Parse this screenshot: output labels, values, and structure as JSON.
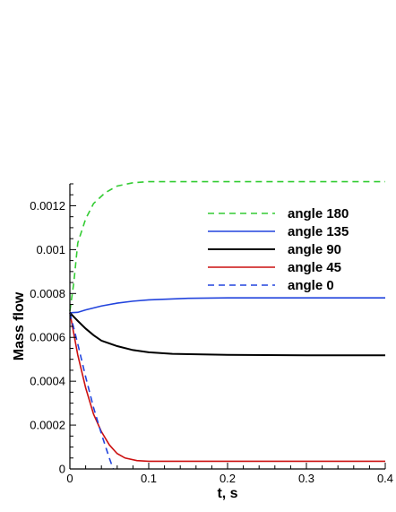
{
  "chart_data": {
    "type": "line",
    "xlabel": "t, s",
    "ylabel": "Mass flow",
    "xlim": [
      0,
      0.4
    ],
    "ylim": [
      0,
      0.0013
    ],
    "x_ticks": [
      0,
      0.1,
      0.2,
      0.3,
      0.4
    ],
    "x_tick_labels": [
      "0",
      "0.1",
      "0.2",
      "0.3",
      "0.4"
    ],
    "y_ticks": [
      0,
      0.0002,
      0.0004,
      0.0006,
      0.0008,
      0.001,
      0.0012
    ],
    "y_tick_labels": [
      "0",
      "0.0002",
      "0.0004",
      "0.0006",
      "0.0008",
      "0.001",
      "0.0012"
    ],
    "grid": false,
    "legend_position": "top-right",
    "series": [
      {
        "name": "angle 180",
        "color": "#33cc33",
        "dash": "dashed",
        "points": [
          [
            0,
            0.00072
          ],
          [
            0.005,
            0.00085
          ],
          [
            0.01,
            0.00103
          ],
          [
            0.02,
            0.00114
          ],
          [
            0.03,
            0.00121
          ],
          [
            0.045,
            0.00126
          ],
          [
            0.06,
            0.00129
          ],
          [
            0.08,
            0.001305
          ],
          [
            0.1,
            0.00131
          ],
          [
            0.2,
            0.00131
          ],
          [
            0.3,
            0.00131
          ],
          [
            0.4,
            0.00131
          ]
        ]
      },
      {
        "name": "angle 135",
        "color": "#2244dd",
        "dash": "solid",
        "points": [
          [
            0,
            0.000712
          ],
          [
            0.01,
            0.000714
          ],
          [
            0.02,
            0.000725
          ],
          [
            0.04,
            0.000743
          ],
          [
            0.06,
            0.000756
          ],
          [
            0.08,
            0.000765
          ],
          [
            0.1,
            0.000771
          ],
          [
            0.15,
            0.000778
          ],
          [
            0.2,
            0.00078
          ],
          [
            0.3,
            0.00078
          ],
          [
            0.4,
            0.00078
          ]
        ]
      },
      {
        "name": "angle 90",
        "color": "#000000",
        "dash": "solid",
        "points": [
          [
            0,
            0.000712
          ],
          [
            0.01,
            0.000675
          ],
          [
            0.02,
            0.00064
          ],
          [
            0.03,
            0.00061
          ],
          [
            0.04,
            0.000585
          ],
          [
            0.06,
            0.00056
          ],
          [
            0.08,
            0.000542
          ],
          [
            0.1,
            0.000532
          ],
          [
            0.13,
            0.000525
          ],
          [
            0.2,
            0.00052
          ],
          [
            0.3,
            0.000518
          ],
          [
            0.4,
            0.000518
          ]
        ]
      },
      {
        "name": "angle 45",
        "color": "#cc1111",
        "dash": "solid",
        "points": [
          [
            0,
            0.000712
          ],
          [
            0.01,
            0.00052
          ],
          [
            0.02,
            0.00037
          ],
          [
            0.03,
            0.00025
          ],
          [
            0.04,
            0.00017
          ],
          [
            0.05,
            0.00011
          ],
          [
            0.06,
            7e-05
          ],
          [
            0.07,
            5e-05
          ],
          [
            0.085,
            3.8e-05
          ],
          [
            0.1,
            3.5e-05
          ],
          [
            0.11,
            3.5e-05
          ],
          [
            0.2,
            3.5e-05
          ],
          [
            0.3,
            3.5e-05
          ],
          [
            0.4,
            3.5e-05
          ]
        ]
      },
      {
        "name": "angle 0",
        "color": "#2244dd",
        "dash": "dashed",
        "points": [
          [
            0,
            0.000712
          ],
          [
            0.01,
            0.00057
          ],
          [
            0.02,
            0.00042
          ],
          [
            0.03,
            0.00028
          ],
          [
            0.04,
            0.00016
          ],
          [
            0.05,
            5e-05
          ],
          [
            0.055,
            0.0
          ]
        ]
      }
    ]
  }
}
